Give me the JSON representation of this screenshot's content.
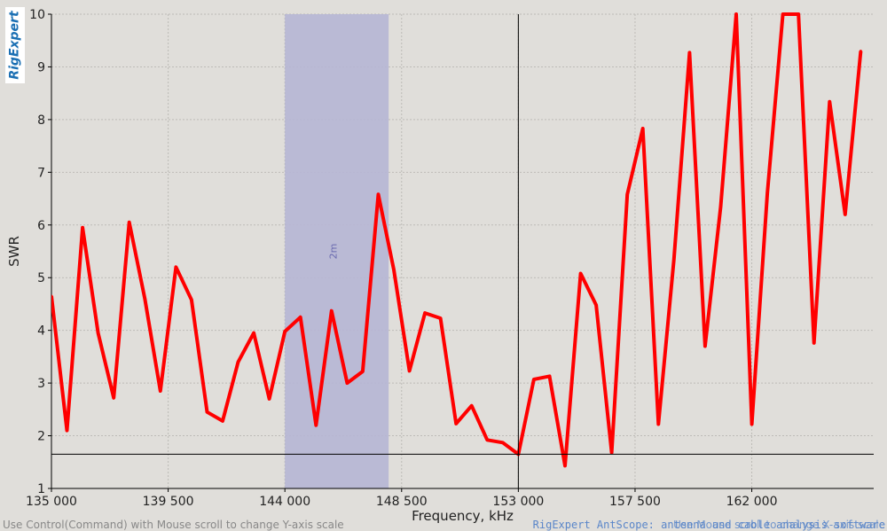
{
  "logo_text": "RigExpert",
  "status": {
    "hint": "Use Control(Command) with Mouse scroll to change Y-axis scale",
    "credit": "RigExpert AntScope: antenna and cable analysis software",
    "hint2": "Use Mouse scroll to change X-axis scale"
  },
  "colors": {
    "background": "#e0deda",
    "grid": "#bdbbb7",
    "series": "#ff0000",
    "band": "#b6b6d4",
    "band_label": "#6a6ab0",
    "cursor": "#000000"
  },
  "chart_data": {
    "type": "line",
    "xlabel": "Frequency, kHz",
    "ylabel": "SWR",
    "xlim": [
      135000,
      166700
    ],
    "ylim": [
      1,
      10
    ],
    "grid": true,
    "x_ticks": [
      135000,
      139500,
      144000,
      148500,
      153000,
      157500,
      162000
    ],
    "x_tick_labels": [
      "135 000",
      "139 500",
      "144 000",
      "148 500",
      "153 000",
      "157 500",
      "162 000"
    ],
    "y_ticks": [
      1,
      2,
      3,
      4,
      5,
      6,
      7,
      8,
      9,
      10
    ],
    "band": {
      "label": "2m",
      "from": 144000,
      "to": 148000
    },
    "cursor": {
      "x": 153000,
      "y": 1.65
    },
    "series": [
      {
        "x": [
          135000,
          135600,
          136200,
          136800,
          137400,
          138000,
          138600,
          139200,
          139800,
          140400,
          141000,
          141600,
          142200,
          142800,
          143400,
          144000,
          144600,
          145200,
          145800,
          146400,
          147000,
          147600,
          148200,
          148800,
          149400,
          150000,
          150600,
          151200,
          151800,
          152400,
          153000,
          153600,
          154200,
          154800,
          155400,
          156000,
          156600,
          157200,
          157800,
          158400,
          159000,
          159600,
          160200,
          160800,
          161400,
          162000,
          162600,
          163200,
          163800,
          164400,
          165000,
          165600,
          166200
        ],
        "y": [
          4.65,
          2.1,
          5.95,
          3.95,
          2.72,
          6.05,
          4.6,
          2.85,
          5.2,
          4.58,
          2.45,
          2.28,
          3.4,
          3.95,
          2.7,
          3.98,
          4.25,
          2.2,
          4.37,
          3.0,
          3.22,
          6.58,
          5.15,
          3.23,
          4.33,
          4.23,
          2.23,
          2.57,
          1.92,
          1.87,
          1.65,
          3.07,
          3.13,
          1.43,
          5.08,
          4.48,
          1.68,
          6.58,
          7.83,
          2.22,
          5.35,
          9.27,
          3.7,
          6.35,
          10.0,
          2.22,
          6.6,
          10.0,
          10.0,
          3.76,
          8.34,
          6.2,
          9.3
        ]
      }
    ]
  }
}
